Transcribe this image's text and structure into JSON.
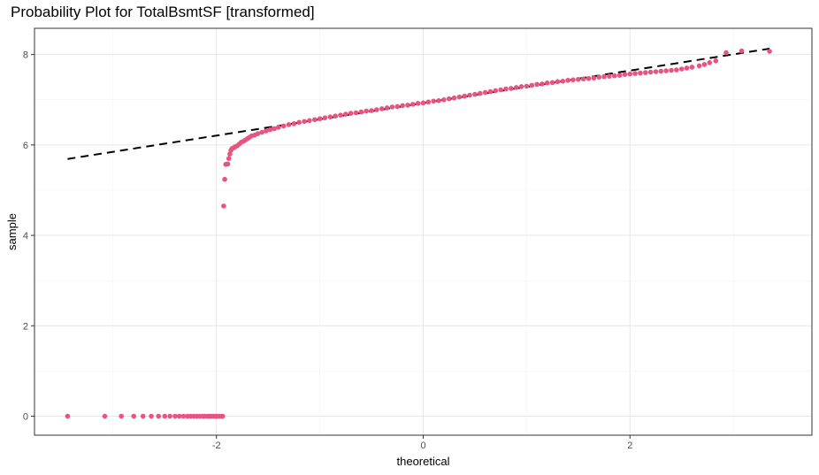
{
  "chart_data": {
    "type": "scatter",
    "title": "Probability Plot for TotalBsmtSF [transformed]",
    "xlabel": "theoretical",
    "ylabel": "sample",
    "xlim": [
      -3.76,
      3.76
    ],
    "ylim": [
      -0.42,
      8.58
    ],
    "xticks": [
      -2,
      0,
      2
    ],
    "xtick_labels": [
      "-2",
      "0",
      "2"
    ],
    "yticks": [
      0,
      2,
      4,
      6,
      8
    ],
    "ytick_labels": [
      "0",
      "2",
      "4",
      "6",
      "8"
    ],
    "grid": true,
    "point_color": "#e75480",
    "reference_line": {
      "style": "dashed",
      "color": "#000000",
      "from": [
        -3.44,
        5.69
      ],
      "to": [
        3.35,
        8.13
      ]
    },
    "points": [
      [
        -3.44,
        0.0
      ],
      [
        -3.08,
        0.0
      ],
      [
        -2.92,
        0.0
      ],
      [
        -2.8,
        0.0
      ],
      [
        -2.71,
        0.0
      ],
      [
        -2.63,
        0.0
      ],
      [
        -2.56,
        0.0
      ],
      [
        -2.5,
        0.0
      ],
      [
        -2.45,
        0.0
      ],
      [
        -2.4,
        0.0
      ],
      [
        -2.36,
        0.0
      ],
      [
        -2.32,
        0.0
      ],
      [
        -2.28,
        0.0
      ],
      [
        -2.25,
        0.0
      ],
      [
        -2.22,
        0.0
      ],
      [
        -2.19,
        0.0
      ],
      [
        -2.16,
        0.0
      ],
      [
        -2.13,
        0.0
      ],
      [
        -2.11,
        0.0
      ],
      [
        -2.08,
        0.0
      ],
      [
        -2.06,
        0.0
      ],
      [
        -2.04,
        0.0
      ],
      [
        -2.02,
        0.0
      ],
      [
        -2.0,
        0.0
      ],
      [
        -1.98,
        0.0
      ],
      [
        -1.96,
        0.0
      ],
      [
        -1.94,
        0.0
      ],
      [
        -1.93,
        4.65
      ],
      [
        -1.92,
        5.24
      ],
      [
        -1.91,
        5.57
      ],
      [
        -1.89,
        5.58
      ],
      [
        -1.88,
        5.7
      ],
      [
        -1.87,
        5.8
      ],
      [
        -1.86,
        5.88
      ],
      [
        -1.85,
        5.92
      ],
      [
        -1.83,
        5.94
      ],
      [
        -1.82,
        5.96
      ],
      [
        -1.8,
        5.98
      ],
      [
        -1.78,
        6.02
      ],
      [
        -1.76,
        6.06
      ],
      [
        -1.74,
        6.08
      ],
      [
        -1.72,
        6.11
      ],
      [
        -1.7,
        6.14
      ],
      [
        -1.68,
        6.17
      ],
      [
        -1.66,
        6.2
      ],
      [
        -1.63,
        6.22
      ],
      [
        -1.6,
        6.25
      ],
      [
        -1.56,
        6.28
      ],
      [
        -1.52,
        6.31
      ],
      [
        -1.48,
        6.34
      ],
      [
        -1.44,
        6.36
      ],
      [
        -1.4,
        6.39
      ],
      [
        -1.35,
        6.42
      ],
      [
        -1.3,
        6.45
      ],
      [
        -1.25,
        6.47
      ],
      [
        -1.2,
        6.5
      ],
      [
        -1.15,
        6.52
      ],
      [
        -1.1,
        6.54
      ],
      [
        -1.05,
        6.56
      ],
      [
        -1.0,
        6.58
      ],
      [
        -0.95,
        6.6
      ],
      [
        -0.9,
        6.62
      ],
      [
        -0.85,
        6.64
      ],
      [
        -0.8,
        6.66
      ],
      [
        -0.75,
        6.68
      ],
      [
        -0.7,
        6.7
      ],
      [
        -0.65,
        6.71
      ],
      [
        -0.6,
        6.73
      ],
      [
        -0.55,
        6.75
      ],
      [
        -0.5,
        6.76
      ],
      [
        -0.45,
        6.78
      ],
      [
        -0.4,
        6.8
      ],
      [
        -0.35,
        6.82
      ],
      [
        -0.3,
        6.84
      ],
      [
        -0.25,
        6.85
      ],
      [
        -0.2,
        6.87
      ],
      [
        -0.15,
        6.88
      ],
      [
        -0.1,
        6.9
      ],
      [
        -0.05,
        6.92
      ],
      [
        0.0,
        6.93
      ],
      [
        0.05,
        6.95
      ],
      [
        0.1,
        6.97
      ],
      [
        0.15,
        6.98
      ],
      [
        0.2,
        7.0
      ],
      [
        0.25,
        7.02
      ],
      [
        0.3,
        7.04
      ],
      [
        0.35,
        7.06
      ],
      [
        0.4,
        7.08
      ],
      [
        0.45,
        7.1
      ],
      [
        0.5,
        7.12
      ],
      [
        0.55,
        7.14
      ],
      [
        0.6,
        7.16
      ],
      [
        0.65,
        7.18
      ],
      [
        0.7,
        7.2
      ],
      [
        0.75,
        7.22
      ],
      [
        0.8,
        7.24
      ],
      [
        0.85,
        7.25
      ],
      [
        0.9,
        7.27
      ],
      [
        0.95,
        7.29
      ],
      [
        1.0,
        7.3
      ],
      [
        1.05,
        7.32
      ],
      [
        1.1,
        7.34
      ],
      [
        1.15,
        7.35
      ],
      [
        1.2,
        7.37
      ],
      [
        1.25,
        7.38
      ],
      [
        1.3,
        7.4
      ],
      [
        1.35,
        7.41
      ],
      [
        1.4,
        7.43
      ],
      [
        1.45,
        7.44
      ],
      [
        1.5,
        7.45
      ],
      [
        1.55,
        7.46
      ],
      [
        1.6,
        7.47
      ],
      [
        1.65,
        7.48
      ],
      [
        1.7,
        7.5
      ],
      [
        1.75,
        7.51
      ],
      [
        1.8,
        7.52
      ],
      [
        1.85,
        7.53
      ],
      [
        1.9,
        7.54
      ],
      [
        1.95,
        7.56
      ],
      [
        2.0,
        7.57
      ],
      [
        2.05,
        7.58
      ],
      [
        2.1,
        7.59
      ],
      [
        2.15,
        7.6
      ],
      [
        2.2,
        7.61
      ],
      [
        2.25,
        7.62
      ],
      [
        2.3,
        7.63
      ],
      [
        2.35,
        7.64
      ],
      [
        2.4,
        7.65
      ],
      [
        2.45,
        7.66
      ],
      [
        2.5,
        7.68
      ],
      [
        2.55,
        7.7
      ],
      [
        2.6,
        7.72
      ],
      [
        2.67,
        7.75
      ],
      [
        2.72,
        7.78
      ],
      [
        2.77,
        7.82
      ],
      [
        2.83,
        7.86
      ],
      [
        2.93,
        8.04
      ],
      [
        3.08,
        8.08
      ],
      [
        3.35,
        8.07
      ]
    ]
  }
}
